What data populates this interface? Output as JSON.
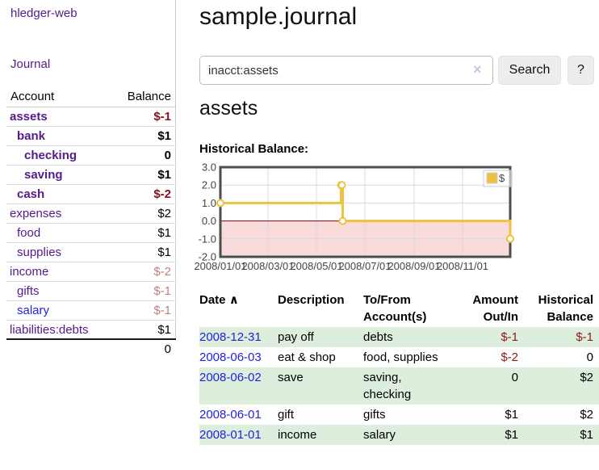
{
  "app": {
    "title": "hledger-web",
    "nav": {
      "journal": "Journal"
    }
  },
  "sidebar": {
    "header": {
      "account": "Account",
      "balance": "Balance"
    },
    "accounts": [
      {
        "name": "assets",
        "balance": "$-1",
        "level": 1,
        "bold": true,
        "balance_style": "neg-strong",
        "link_style": ""
      },
      {
        "name": "bank",
        "balance": "$1",
        "level": 2,
        "bold": true,
        "balance_style": "",
        "link_style": ""
      },
      {
        "name": "checking",
        "balance": "0",
        "level": 3,
        "bold": true,
        "balance_style": "",
        "link_style": ""
      },
      {
        "name": "saving",
        "balance": "$1",
        "level": 3,
        "bold": true,
        "balance_style": "",
        "link_style": ""
      },
      {
        "name": "cash",
        "balance": "$-2",
        "level": 2,
        "bold": true,
        "balance_style": "neg-strong",
        "link_style": ""
      },
      {
        "name": "expenses",
        "balance": "$2",
        "level": 1,
        "bold": false,
        "balance_style": "",
        "link_style": ""
      },
      {
        "name": "food",
        "balance": "$1",
        "level": 2,
        "bold": false,
        "balance_style": "",
        "link_style": ""
      },
      {
        "name": "supplies",
        "balance": "$1",
        "level": 2,
        "bold": false,
        "balance_style": "",
        "link_style": ""
      },
      {
        "name": "income",
        "balance": "$-2",
        "level": 1,
        "bold": false,
        "balance_style": "neg-dim",
        "link_style": ""
      },
      {
        "name": "gifts",
        "balance": "$-1",
        "level": 2,
        "bold": false,
        "balance_style": "neg-dim",
        "link_style": ""
      },
      {
        "name": "salary",
        "balance": "$-1",
        "level": 2,
        "bold": false,
        "balance_style": "neg-dim",
        "link_style": "blue"
      },
      {
        "name": "liabilities:debts",
        "balance": "$1",
        "level": 1,
        "bold": false,
        "balance_style": "",
        "link_style": ""
      }
    ],
    "total": "0"
  },
  "main": {
    "title": "sample.journal",
    "search": {
      "value": "inacct:assets",
      "clear_icon": "×",
      "search_button": "Search",
      "help_button": "?"
    },
    "account_heading": "assets",
    "chart_title": "Historical Balance:"
  },
  "chart_data": {
    "type": "line",
    "title": "Historical Balance",
    "step": true,
    "series": [
      {
        "name": "$",
        "color": "#edc240",
        "points": [
          [
            "2008-01-01",
            1
          ],
          [
            "2008-06-01",
            2
          ],
          [
            "2008-06-02",
            2
          ],
          [
            "2008-06-03",
            0
          ],
          [
            "2008-12-31",
            -1
          ]
        ]
      }
    ],
    "xlim": [
      "2008-01-01",
      "2008-12-31"
    ],
    "ylim": [
      -2,
      3
    ],
    "yticks": [
      3,
      2,
      1,
      0,
      -1,
      -2
    ],
    "xticks": [
      {
        "date": "2008-01-01",
        "label": "2008/01/01"
      },
      {
        "date": "2008-03-01",
        "label": "2008/03/01"
      },
      {
        "date": "2008-05-01",
        "label": "2008/05/01"
      },
      {
        "date": "2008-07-01",
        "label": "2008/07/01"
      },
      {
        "date": "2008-09-01",
        "label": "2008/09/01"
      },
      {
        "date": "2008-11-01",
        "label": "2008/11/01"
      }
    ],
    "legend_position": "top-right",
    "grid": true,
    "colors": {
      "grid": "#d9d9d9",
      "border": "#4d4d4d",
      "negative_region": "#f9dbdb",
      "zero_line": "#8b0000"
    }
  },
  "register": {
    "headers": {
      "date": "Date",
      "sort_icon": "∧",
      "description": "Description",
      "tofrom1": "To/From",
      "tofrom2": "Account(s)",
      "amount1": "Amount",
      "amount2": "Out/In",
      "balance1": "Historical",
      "balance2": "Balance"
    },
    "rows": [
      {
        "date": "2008-12-31",
        "description": "pay off",
        "accounts": "debts",
        "amount": "$-1",
        "amount_negative": true,
        "balance": "$-1",
        "balance_negative": true
      },
      {
        "date": "2008-06-03",
        "description": "eat & shop",
        "accounts": "food, supplies",
        "amount": "$-2",
        "amount_negative": true,
        "balance": "0",
        "balance_negative": false
      },
      {
        "date": "2008-06-02",
        "description": "save",
        "accounts": "saving, checking",
        "amount": "0",
        "amount_negative": false,
        "balance": "$2",
        "balance_negative": false
      },
      {
        "date": "2008-06-01",
        "description": "gift",
        "accounts": "gifts",
        "amount": "$1",
        "amount_negative": false,
        "balance": "$2",
        "balance_negative": false
      },
      {
        "date": "2008-01-01",
        "description": "income",
        "accounts": "salary",
        "amount": "$1",
        "amount_negative": false,
        "balance": "$1",
        "balance_negative": false
      }
    ]
  },
  "colors": {
    "link_purple": "#551a8b",
    "link_blue": "#2222dd",
    "negative_strong": "#8b1021",
    "negative_dim": "#c47d7d",
    "negative_register": "#8e1a1a",
    "row_stripe_green": "#ddeedd",
    "accent_gold": "#edc240"
  }
}
